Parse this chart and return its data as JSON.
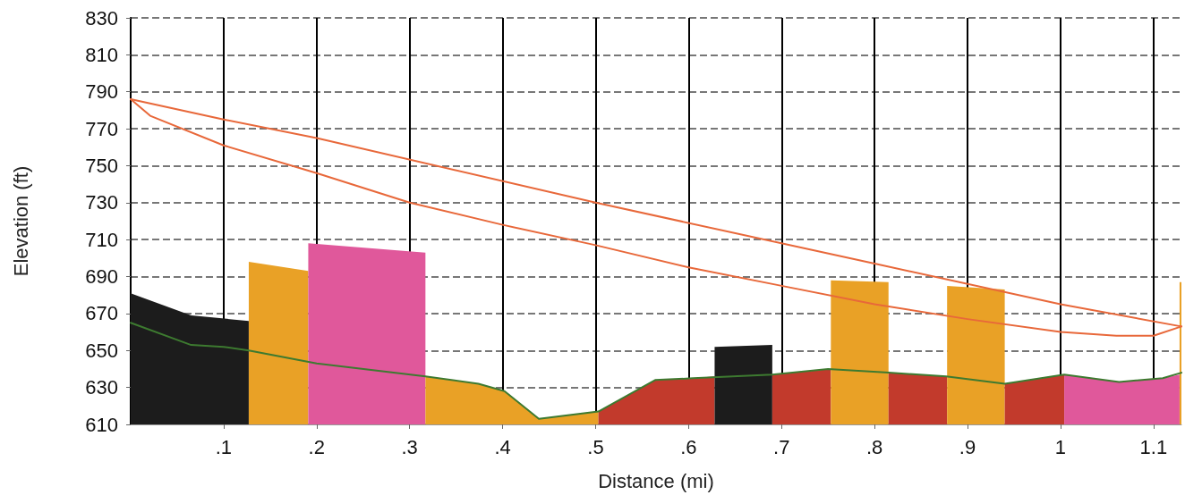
{
  "chart_data": {
    "type": "area",
    "xlabel": "Distance (mi)",
    "ylabel": "Elevation (ft)",
    "xlim": [
      0,
      1.13
    ],
    "xticks": [
      {
        "value": 0.1,
        "label": ".1"
      },
      {
        "value": 0.2,
        "label": ".2"
      },
      {
        "value": 0.3,
        "label": ".3"
      },
      {
        "value": 0.4,
        "label": ".4"
      },
      {
        "value": 0.5,
        "label": ".5"
      },
      {
        "value": 0.6,
        "label": ".6"
      },
      {
        "value": 0.7,
        "label": ".7"
      },
      {
        "value": 0.8,
        "label": ".8"
      },
      {
        "value": 0.9,
        "label": ".9"
      },
      1,
      1.1
    ],
    "ylim": [
      610,
      830
    ],
    "yticks": [
      610,
      630,
      650,
      670,
      690,
      710,
      730,
      750,
      770,
      790,
      810,
      830
    ],
    "grid": true,
    "marker": "none",
    "line_style": "solid",
    "series": [
      {
        "color": "#1c1c1c",
        "x": [
          0,
          0.065,
          0.127
        ],
        "values": [
          681,
          669,
          666
        ]
      },
      {
        "color": "#e9a126",
        "x": [
          0.127,
          0.191
        ],
        "values": [
          698,
          693
        ]
      },
      {
        "color": "#e0589b",
        "x": [
          0.191,
          0.317
        ],
        "values": [
          708,
          703
        ]
      },
      {
        "color": "#e9a126",
        "x": [
          0.317,
          0.374,
          0.402,
          0.439,
          0.503
        ],
        "values": [
          636,
          632,
          628,
          613,
          617
        ]
      },
      {
        "color": "#c23a2c",
        "x": [
          0.503,
          0.564,
          0.605,
          0.628
        ],
        "values": [
          617,
          634,
          635,
          636
        ]
      },
      {
        "color": "#1c1c1c",
        "x": [
          0.628,
          0.69
        ],
        "values": [
          652,
          653
        ]
      },
      {
        "color": "#c23a2c",
        "x": [
          0.69,
          0.753
        ],
        "values": [
          637,
          640
        ]
      },
      {
        "color": "#e9a126",
        "x": [
          0.753,
          0.815
        ],
        "values": [
          688,
          687
        ]
      },
      {
        "color": "#c23a2c",
        "x": [
          0.815,
          0.878
        ],
        "values": [
          638,
          636
        ]
      },
      {
        "color": "#e9a126",
        "x": [
          0.878,
          0.94
        ],
        "values": [
          685,
          683
        ]
      },
      {
        "color": "#c23a2c",
        "x": [
          0.94,
          1.004
        ],
        "values": [
          632,
          637
        ]
      },
      {
        "color": "#e0589b",
        "x": [
          1.004,
          1.063,
          1.11,
          1.128
        ],
        "values": [
          637,
          633,
          635,
          637
        ]
      },
      {
        "color": "#e9a126",
        "x": [
          1.128,
          1.13
        ],
        "values": [
          687,
          687
        ]
      },
      {
        "type": "line",
        "color": "#3d7a30",
        "x": [
          0,
          0.065,
          0.1,
          0.127,
          0.2,
          0.317,
          0.374,
          0.402,
          0.439,
          0.503,
          0.564,
          0.605,
          0.69,
          0.75,
          0.815,
          0.877,
          0.94,
          1.004,
          1.063,
          1.11,
          1.13
        ],
        "values": [
          665,
          653,
          652,
          650,
          643,
          636,
          632,
          628,
          613,
          617,
          634,
          635,
          637,
          640,
          638,
          636,
          632,
          637,
          633,
          635,
          638
        ]
      },
      {
        "type": "line",
        "color": "#e8683a",
        "x": [
          0,
          0.021,
          0.1,
          0.2,
          0.3,
          0.4,
          0.5,
          0.6,
          0.7,
          0.8,
          0.9,
          1.0,
          1.06,
          1.1,
          1.13
        ],
        "values": [
          786,
          777,
          761,
          746,
          730,
          718,
          707,
          695,
          685,
          675,
          667,
          660,
          658,
          658,
          663
        ]
      },
      {
        "type": "line",
        "color": "#e8683a",
        "x": [
          0,
          0.1,
          0.2,
          0.5,
          0.8,
          1.0,
          1.13
        ],
        "values": [
          786,
          775,
          765,
          730,
          697,
          675,
          663
        ]
      }
    ]
  }
}
